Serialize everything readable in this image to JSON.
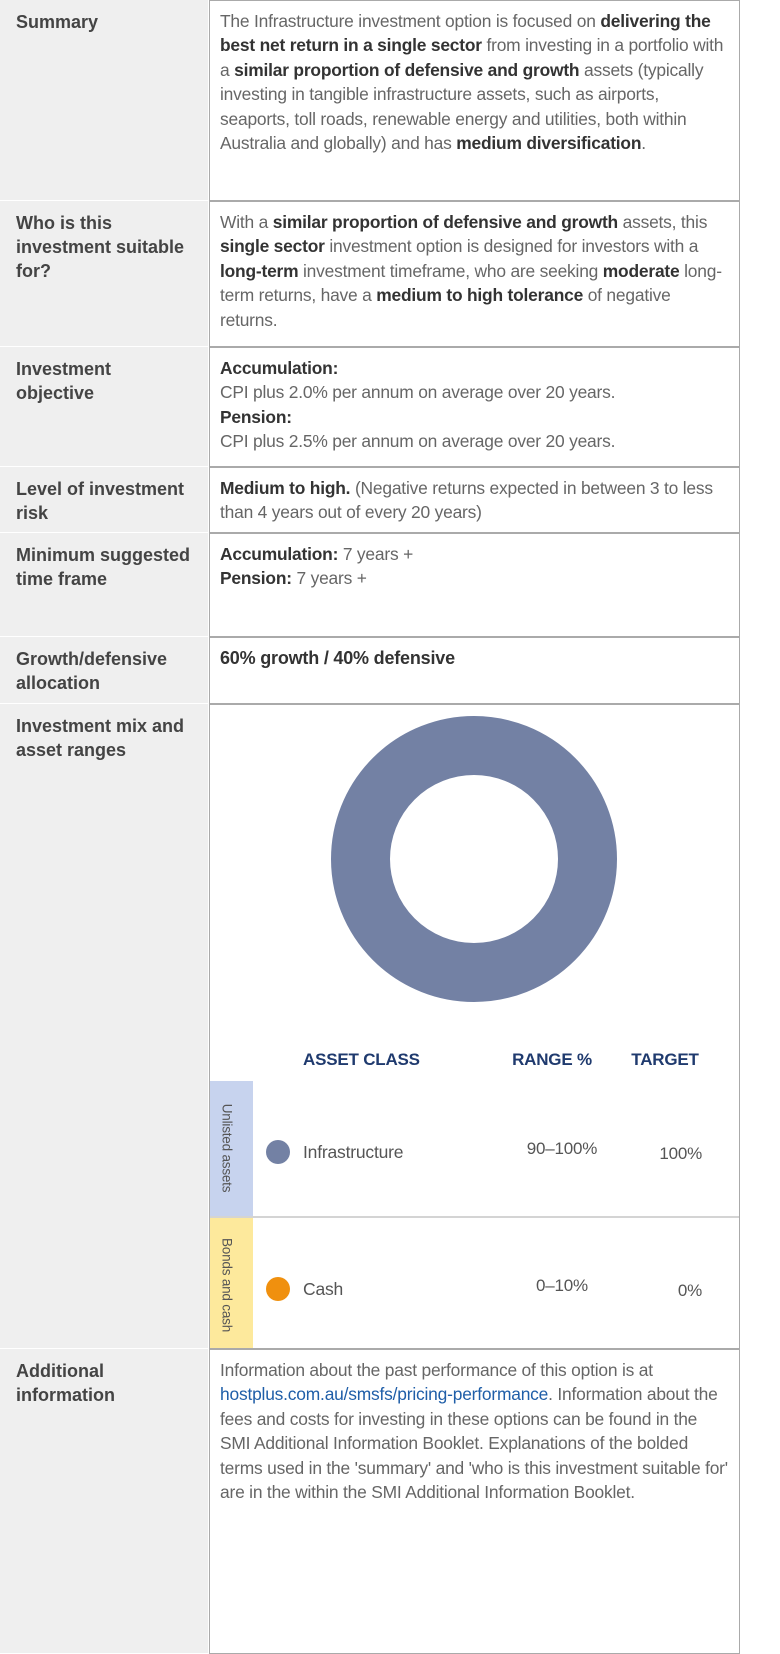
{
  "rows": [
    {
      "label": "Summary",
      "paragraphs": [
        [
          {
            "text": "The Infrastructure investment option is focused on "
          },
          {
            "text": "delivering the best net return in a single sector",
            "bold": true
          },
          {
            "text": " from investing in a portfolio with a "
          },
          {
            "text": "similar proportion of defensive and growth",
            "bold": true
          },
          {
            "text": " assets (typically investing in tangible infrastructure assets, such as airports, seaports, toll roads, renewable energy and utilities, both within Australia and globally) and has "
          },
          {
            "text": "medium diversification",
            "bold": true
          },
          {
            "text": "."
          }
        ]
      ]
    },
    {
      "label": "Who is this investment suitable for?",
      "paragraphs": [
        [
          {
            "text": "With a "
          },
          {
            "text": "similar proportion of defensive and growth",
            "bold": true
          },
          {
            "text": " assets, this "
          },
          {
            "text": "single sector",
            "bold": true
          },
          {
            "text": " investment option is designed for investors with a "
          },
          {
            "text": "long-term",
            "bold": true
          },
          {
            "text": " investment timeframe, who are seeking "
          },
          {
            "text": "moderate",
            "bold": true
          },
          {
            "text": " long-term returns, have a "
          },
          {
            "text": "medium to high tolerance",
            "bold": true
          },
          {
            "text": " of negative returns."
          }
        ]
      ]
    },
    {
      "label": "Investment objective",
      "paragraphs": [
        [
          {
            "text": "Accumulation:",
            "bold": true
          }
        ],
        [
          {
            "text": "CPI plus 2.0% per annum on average over 20 years."
          }
        ],
        [
          {
            "text": "Pension:",
            "bold": true
          }
        ],
        [
          {
            "text": "CPI plus 2.5% per annum on average over 20 years."
          }
        ]
      ]
    },
    {
      "label": "Level of investment risk",
      "paragraphs": [
        [
          {
            "text": "Medium to high.",
            "bold": true
          },
          {
            "text": " (Negative returns expected in between 3 to less than 4 years out of every 20 years)"
          }
        ]
      ]
    },
    {
      "label": "Minimum suggested time frame",
      "paragraphs": [
        [
          {
            "text": "Accumulation:",
            "bold": true
          },
          {
            "text": " 7 years +"
          }
        ],
        [
          {
            "text": "Pension:",
            "bold": true
          },
          {
            "text": " 7 years +"
          }
        ]
      ]
    },
    {
      "label": "Growth/defensive allocation",
      "paragraphs": [
        [
          {
            "text": "60% growth / 40% defensive",
            "bold": true
          }
        ]
      ]
    },
    {
      "label": "Investment mix and asset ranges",
      "asset_table": {
        "headers": [
          "ASSET CLASS",
          "RANGE %",
          "TARGET"
        ],
        "groups": [
          {
            "name": "Unlisted assets",
            "color": "#c7d3ee",
            "assets": [
              {
                "name": "Infrastructure",
                "color": "#7381a4",
                "range": "90–100%",
                "target": "100%"
              }
            ]
          },
          {
            "name": "Bonds and cash",
            "color": "#fde99c",
            "assets": [
              {
                "name": "Cash",
                "color": "#f0900e",
                "range": "0–10%",
                "target": "0%"
              }
            ]
          }
        ]
      }
    },
    {
      "label": "Additional information",
      "paragraphs": [
        [
          {
            "text": "Information about the past performance of this option is at "
          },
          {
            "text": "hostplus.com.au/smsfs/pricing-performance",
            "link": true
          },
          {
            "text": ". Information about the fees and costs for investing in these options can be found in the SMI Additional Information Booklet. Explanations of the bolded terms used in the 'summary' and 'who is this investment suitable for' are in the within the SMI Additional Information Booklet."
          }
        ]
      ]
    }
  ]
}
